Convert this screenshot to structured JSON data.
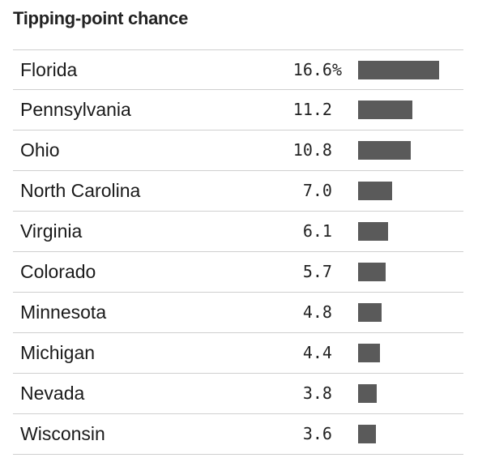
{
  "title": "Tipping-point chance",
  "chart_data": {
    "type": "bar",
    "title": "Tipping-point chance",
    "orientation": "horizontal",
    "categories": [
      "Florida",
      "Pennsylvania",
      "Ohio",
      "North Carolina",
      "Virginia",
      "Colorado",
      "Minnesota",
      "Michigan",
      "Nevada",
      "Wisconsin"
    ],
    "values": [
      16.6,
      11.2,
      10.8,
      7.0,
      6.1,
      5.7,
      4.8,
      4.4,
      3.8,
      3.6
    ],
    "value_labels": [
      "16.6%",
      "11.2",
      "10.8",
      "7.0",
      "6.1",
      "5.7",
      "4.8",
      "4.4",
      "3.8",
      "3.6"
    ],
    "unit": "%",
    "bar_color": "#5a5a5a",
    "grid": false
  }
}
